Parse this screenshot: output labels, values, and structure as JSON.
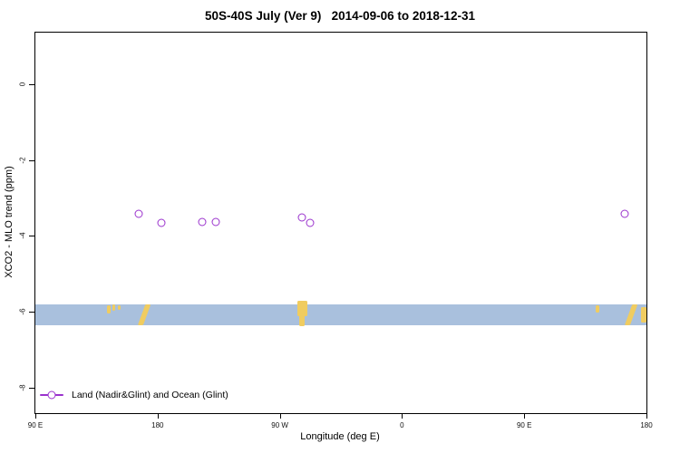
{
  "title": "50S-40S July (Ver 9)   2014-09-06 to 2018-12-31",
  "chart_data": {
    "type": "scatter",
    "title": "50S-40S July (Ver 9)   2014-09-06 to 2018-12-31",
    "xlabel": "Longitude (deg E)",
    "ylabel": "XCO2 - MLO trend (ppm)",
    "xlim": [
      90,
      540
    ],
    "ylim": [
      -8.67,
      1.36
    ],
    "grid": false,
    "x_ticks": [
      {
        "value": 90,
        "label": "90 E"
      },
      {
        "value": 180,
        "label": "180"
      },
      {
        "value": 270,
        "label": "90 W"
      },
      {
        "value": 360,
        "label": "0"
      },
      {
        "value": 450,
        "label": "90 E"
      },
      {
        "value": 540,
        "label": "180"
      }
    ],
    "y_ticks": [
      {
        "value": 0,
        "label": "0"
      },
      {
        "value": -2,
        "label": "-2"
      },
      {
        "value": -4,
        "label": "-4"
      },
      {
        "value": -6,
        "label": "-6"
      },
      {
        "value": -8,
        "label": "-8"
      }
    ],
    "series": [
      {
        "name": "Land (Nadir&Glint) and Ocean (Glint)",
        "marker": "open-circle",
        "color": "#9a32cd",
        "points": [
          {
            "lon": 166,
            "value": -3.42
          },
          {
            "lon": 183,
            "value": -3.65
          },
          {
            "lon": 213,
            "value": -3.62
          },
          {
            "lon": 223,
            "value": -3.62
          },
          {
            "lon": 286,
            "value": -3.52
          },
          {
            "lon": 292,
            "value": -3.66
          },
          {
            "lon": 524,
            "value": -3.42
          }
        ]
      }
    ],
    "map_band": {
      "description": "coastline strip of the 50S-40S latitude band",
      "value_top": -5.8,
      "value_bottom": -6.36,
      "ocean_color": "#a9c0dd",
      "land_color": "#f0cc60",
      "land_patches": [
        {
          "lon0": 142.5,
          "lon1": 145.5,
          "f0": 0.05,
          "f1": 0.45
        },
        {
          "lon0": 147.0,
          "lon1": 149.0,
          "f0": 0.0,
          "f1": 0.3
        },
        {
          "lon0": 151.0,
          "lon1": 152.5,
          "f0": 0.05,
          "f1": 0.25
        },
        {
          "lon0": 168.0,
          "lon1": 172.0,
          "f0": 0.0,
          "f1": 1.0,
          "skew": -20
        },
        {
          "lon0": 283.0,
          "lon1": 290.5,
          "f0": -0.18,
          "f1": 0.55
        },
        {
          "lon0": 284.5,
          "lon1": 288.5,
          "f0": 0.45,
          "f1": 1.05
        },
        {
          "lon0": 502.5,
          "lon1": 505.5,
          "f0": 0.05,
          "f1": 0.4
        },
        {
          "lon0": 526.5,
          "lon1": 530.5,
          "f0": 0.0,
          "f1": 1.0,
          "skew": -20
        },
        {
          "lon0": 536.0,
          "lon1": 540.0,
          "f0": 0.15,
          "f1": 0.85
        }
      ]
    },
    "legend": {
      "position": "bottom-left",
      "label": "Land (Nadir&Glint) and Ocean (Glint)"
    }
  }
}
